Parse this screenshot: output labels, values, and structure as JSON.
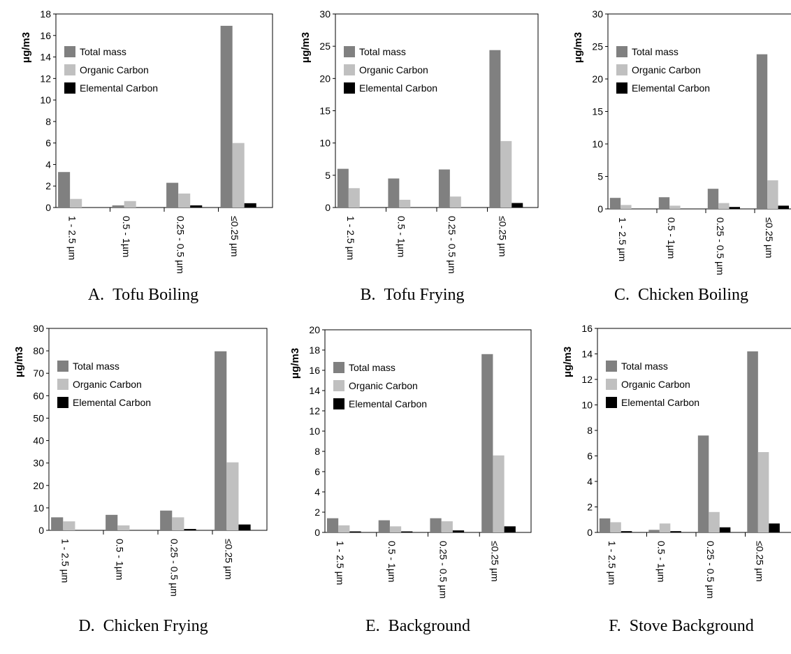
{
  "colors": {
    "total_mass": "#808080",
    "organic_carbon": "#c0c0c0",
    "elemental_carbon": "#000000"
  },
  "chart_data": [
    {
      "type": "bar",
      "letter": "A.",
      "caption": "Tofu Boiling",
      "ylabel": "μg/m3",
      "ylim": [
        0,
        18
      ],
      "yticks": [
        "0",
        "2",
        "4",
        "6",
        "8",
        "10",
        "12",
        "14",
        "16",
        "18"
      ],
      "categories": [
        "1 - 2.5 µm",
        "0.5 - 1µm",
        "0.25 - 0.5 µm",
        "≤0.25 µm"
      ],
      "legend_position": "top-left",
      "series": [
        {
          "name": "Total mass",
          "color": "#808080",
          "values": [
            3.3,
            0.2,
            2.3,
            16.9
          ]
        },
        {
          "name": "Organic Carbon",
          "color": "#c0c0c0",
          "values": [
            0.8,
            0.6,
            1.3,
            6.0
          ]
        },
        {
          "name": "Elemental Carbon",
          "color": "#000000",
          "values": [
            0.0,
            0.0,
            0.2,
            0.4
          ]
        }
      ]
    },
    {
      "type": "bar",
      "letter": "B.",
      "caption": "Tofu Frying",
      "ylabel": "μg/m3",
      "ylim": [
        0,
        30
      ],
      "yticks": [
        "0",
        "5",
        "10",
        "15",
        "20",
        "25",
        "30"
      ],
      "categories": [
        "1 - 2.5 µm",
        "0.5 - 1µm",
        "0.25 - 0.5 µm",
        "≤0.25 µm"
      ],
      "legend_position": "top-left",
      "series": [
        {
          "name": "Total mass",
          "color": "#808080",
          "values": [
            6.0,
            4.5,
            5.9,
            24.4
          ]
        },
        {
          "name": "Organic Carbon",
          "color": "#c0c0c0",
          "values": [
            3.0,
            1.2,
            1.7,
            10.3
          ]
        },
        {
          "name": "Elemental Carbon",
          "color": "#000000",
          "values": [
            0.0,
            0.0,
            0.0,
            0.7
          ]
        }
      ]
    },
    {
      "type": "bar",
      "letter": "C.",
      "caption": "Chicken Boiling",
      "ylabel": "μg/m3",
      "ylim": [
        0,
        30
      ],
      "yticks": [
        "0",
        "5",
        "10",
        "15",
        "20",
        "25",
        "30"
      ],
      "categories": [
        "1 - 2.5 µm",
        "0.5 - 1µm",
        "0.25 - 0.5 µm",
        "≤0.25 µm"
      ],
      "legend_position": "top-left",
      "series": [
        {
          "name": "Total mass",
          "color": "#808080",
          "values": [
            1.7,
            1.8,
            3.1,
            23.8
          ]
        },
        {
          "name": "Organic Carbon",
          "color": "#c0c0c0",
          "values": [
            0.6,
            0.5,
            0.9,
            4.4
          ]
        },
        {
          "name": "Elemental Carbon",
          "color": "#000000",
          "values": [
            0.0,
            0.0,
            0.3,
            0.5
          ]
        }
      ]
    },
    {
      "type": "bar",
      "letter": "D.",
      "caption": "Chicken Frying",
      "ylabel": "μg/m3",
      "ylim": [
        0,
        90
      ],
      "yticks": [
        "0",
        "10",
        "20",
        "30",
        "40",
        "50",
        "60",
        "70",
        "80",
        "90"
      ],
      "categories": [
        "1 - 2.5 µm",
        "0.5 - 1µm",
        "0.25 - 0.5 µm",
        "≤0.25 µm"
      ],
      "legend_position": "top-left",
      "series": [
        {
          "name": "Total mass",
          "color": "#808080",
          "values": [
            5.8,
            6.9,
            8.8,
            79.8
          ]
        },
        {
          "name": "Organic Carbon",
          "color": "#c0c0c0",
          "values": [
            4.0,
            2.2,
            5.8,
            30.3
          ]
        },
        {
          "name": "Elemental Carbon",
          "color": "#000000",
          "values": [
            0.0,
            0.0,
            0.6,
            2.6
          ]
        }
      ]
    },
    {
      "type": "bar",
      "letter": "E.",
      "caption": "Background",
      "ylabel": "μg/m3",
      "ylim": [
        0,
        20
      ],
      "yticks": [
        "0",
        "2",
        "4",
        "6",
        "8",
        "10",
        "12",
        "14",
        "16",
        "18",
        "20"
      ],
      "categories": [
        "1 - 2.5 µm",
        "0.5 - 1µm",
        "0.25 - 0.5 µm",
        "≤0.25 µm"
      ],
      "legend_position": "top-left",
      "series": [
        {
          "name": "Total mass",
          "color": "#808080",
          "values": [
            1.4,
            1.2,
            1.4,
            17.6
          ]
        },
        {
          "name": "Organic Carbon",
          "color": "#c0c0c0",
          "values": [
            0.7,
            0.6,
            1.1,
            7.6
          ]
        },
        {
          "name": "Elemental Carbon",
          "color": "#000000",
          "values": [
            0.1,
            0.1,
            0.2,
            0.6
          ]
        }
      ]
    },
    {
      "type": "bar",
      "letter": "F.",
      "caption": "Stove Background",
      "ylabel": "μg/m3",
      "ylim": [
        0,
        16
      ],
      "yticks": [
        "0",
        "2",
        "4",
        "6",
        "8",
        "10",
        "12",
        "14",
        "16"
      ],
      "categories": [
        "1 - 2.5 µm",
        "0.5 - 1µm",
        "0.25 - 0.5 µm",
        "≤0.25 µm"
      ],
      "legend_position": "top-left",
      "series": [
        {
          "name": "Total mass",
          "color": "#808080",
          "values": [
            1.1,
            0.2,
            7.6,
            14.2
          ]
        },
        {
          "name": "Organic Carbon",
          "color": "#c0c0c0",
          "values": [
            0.8,
            0.7,
            1.6,
            6.3
          ]
        },
        {
          "name": "Elemental Carbon",
          "color": "#000000",
          "values": [
            0.1,
            0.1,
            0.4,
            0.7
          ]
        }
      ]
    }
  ]
}
